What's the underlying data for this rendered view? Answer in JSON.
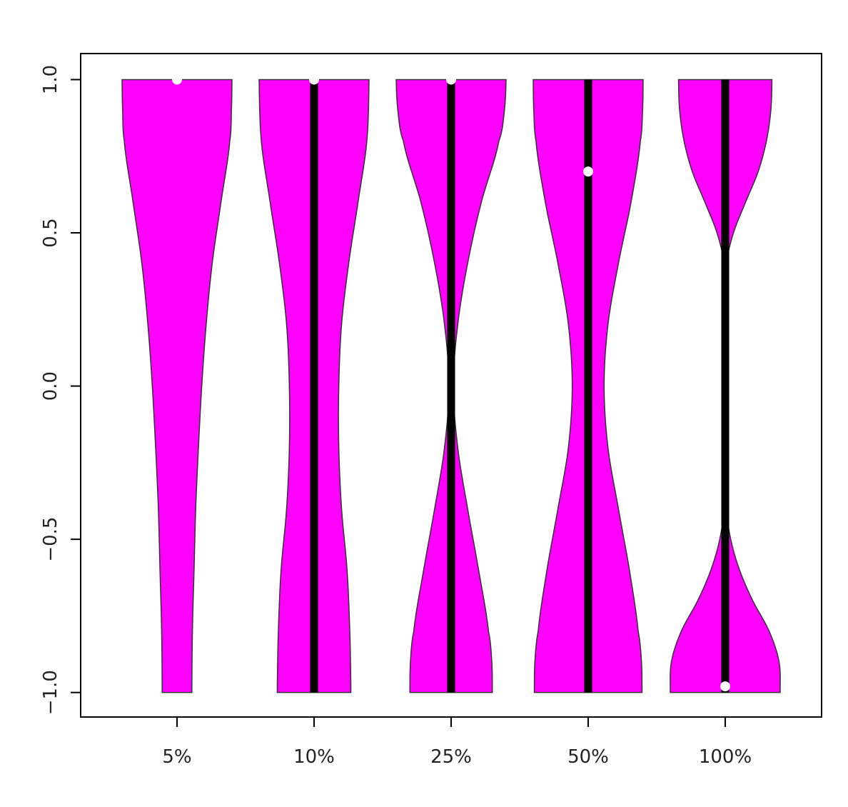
{
  "chart_data": {
    "type": "violin",
    "title": "",
    "xlabel": "",
    "ylabel": "",
    "ylim": [
      -1.08,
      1.085
    ],
    "yticks": [
      -1.0,
      -0.5,
      0.0,
      0.5,
      1.0
    ],
    "ytick_labels": [
      "−1.0",
      "−0.5",
      "0.0",
      "0.5",
      "1.0"
    ],
    "categories": [
      "5%",
      "10%",
      "25%",
      "50%",
      "100%"
    ],
    "fill_color": "#ff00ff",
    "outline_color": "#333333",
    "median_color": "#ffffff",
    "iqr_color": "#000000",
    "grid": false,
    "legend": "none",
    "violins": [
      {
        "label": "5%",
        "median": 1.0,
        "q1": 1.0,
        "q3": 1.0,
        "profile_y": [
          -1.0,
          -0.8,
          -0.6,
          -0.4,
          -0.2,
          0.0,
          0.2,
          0.4,
          0.6,
          0.8,
          0.9,
          1.0
        ],
        "profile_w": [
          0.27,
          0.28,
          0.31,
          0.34,
          0.39,
          0.45,
          0.53,
          0.64,
          0.8,
          0.96,
          0.99,
          1.0
        ]
      },
      {
        "label": "10%",
        "median": 1.0,
        "q1": -1.0,
        "q3": 1.0,
        "profile_y": [
          -1.0,
          -0.8,
          -0.6,
          -0.4,
          -0.2,
          0.0,
          0.2,
          0.4,
          0.6,
          0.8,
          1.0
        ],
        "profile_w": [
          0.67,
          0.65,
          0.6,
          0.5,
          0.45,
          0.45,
          0.5,
          0.63,
          0.8,
          0.96,
          1.0
        ]
      },
      {
        "label": "25%",
        "median": 1.0,
        "q1": -1.0,
        "q3": 1.0,
        "profile_y": [
          -1.0,
          -0.9,
          -0.8,
          -0.6,
          -0.4,
          -0.2,
          0.0,
          0.2,
          0.4,
          0.6,
          0.8,
          0.9,
          1.0
        ],
        "profile_w": [
          0.75,
          0.74,
          0.68,
          0.5,
          0.3,
          0.12,
          0.04,
          0.12,
          0.3,
          0.55,
          0.87,
          0.97,
          1.0
        ]
      },
      {
        "label": "50%",
        "median": 0.7,
        "q1": -1.0,
        "q3": 1.0,
        "profile_y": [
          -1.0,
          -0.9,
          -0.8,
          -0.6,
          -0.4,
          -0.2,
          0.0,
          0.2,
          0.4,
          0.6,
          0.8,
          0.9,
          1.0
        ],
        "profile_w": [
          0.98,
          0.97,
          0.91,
          0.75,
          0.55,
          0.36,
          0.29,
          0.36,
          0.55,
          0.78,
          0.95,
          0.99,
          1.0
        ]
      },
      {
        "label": "100%",
        "median": -0.98,
        "q1": -1.0,
        "q3": 1.0,
        "profile_y": [
          -1.0,
          -0.9,
          -0.8,
          -0.7,
          -0.6,
          -0.5,
          -0.4,
          -0.2,
          0.0,
          0.2,
          0.4,
          0.5,
          0.6,
          0.7,
          0.8,
          0.9,
          1.0
        ],
        "profile_w": [
          1.0,
          0.98,
          0.8,
          0.5,
          0.26,
          0.1,
          0.02,
          0.0,
          0.0,
          0.0,
          0.02,
          0.15,
          0.37,
          0.6,
          0.75,
          0.83,
          0.85
        ]
      }
    ]
  }
}
